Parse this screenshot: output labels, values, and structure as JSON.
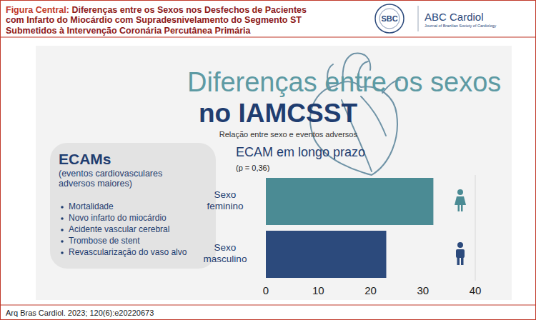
{
  "header": {
    "label": "Figura Central:",
    "title": "Diferenças entre os Sexos nos Desfechos de Pacientes com Infarto do Miocárdio com Supradesnivelamento do Segmento ST Submetidos à Intervenção Coronária Percutânea Primária",
    "logos": [
      "SBC",
      "ABC Cardiol",
      "Journal of Brazilian Society of Cardiology"
    ]
  },
  "headline": {
    "line1": "Diferenças entre os sexos",
    "line2": "no IAMCSST",
    "subtitle": "Relação entre sexo e eventos adversos"
  },
  "definition": {
    "title": "ECAMs",
    "subtitle": "(eventos cardiovasculares adversos maiores)",
    "items": [
      "Mortalidade",
      "Novo infarto do miocárdio",
      "Acidente vascular cerebral",
      "Trombose de stent",
      "Revascularização do vaso alvo"
    ]
  },
  "chart_data": {
    "type": "bar",
    "orientation": "horizontal",
    "title": "ECAM em longo prazo",
    "subtitle": "(p = 0,36)",
    "categories": [
      "Sexo feminino",
      "Sexo masculino"
    ],
    "values": [
      32,
      23
    ],
    "colors": [
      "#4b8b94",
      "#2c4a7c"
    ],
    "xlim": [
      0,
      40
    ],
    "xticks": [
      0,
      10,
      20,
      30,
      40
    ],
    "grid": false
  },
  "footer": {
    "citation": "Arq Bras Cardiol. 2023; 120(6):e20220673"
  }
}
